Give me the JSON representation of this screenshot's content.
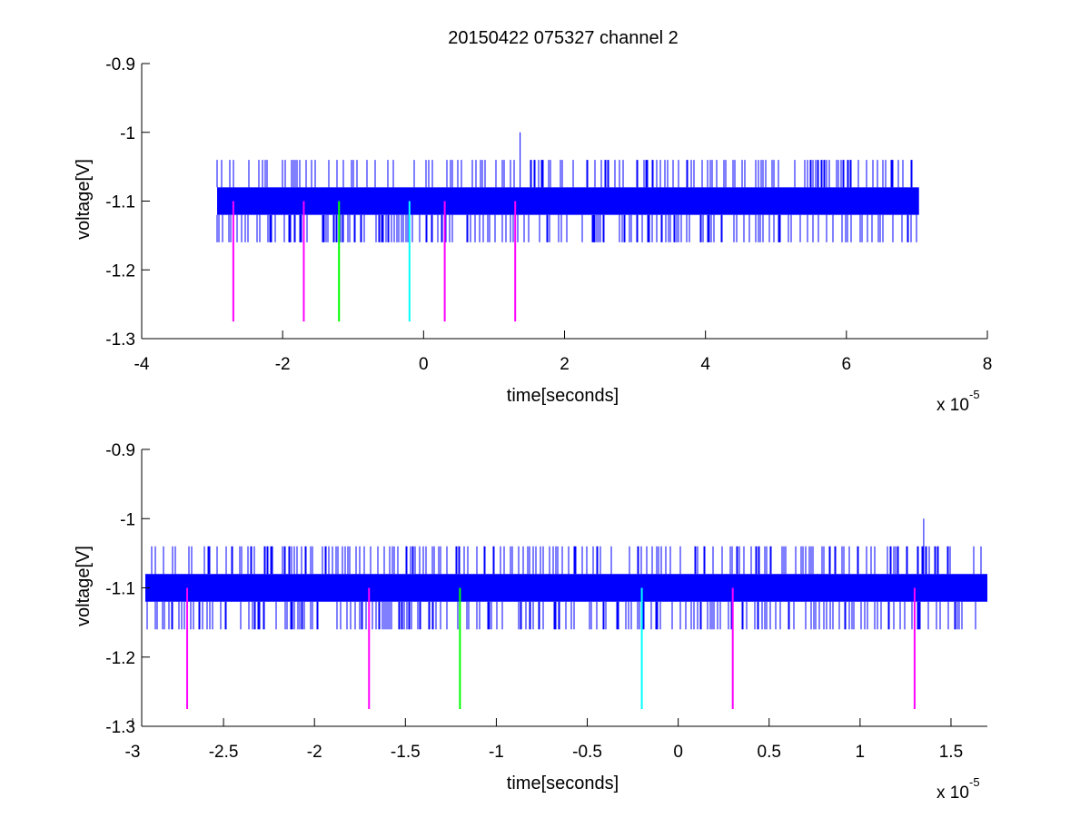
{
  "chart_data": {
    "title": "20150422 075327 channel 2",
    "colors": {
      "signal": "#0000ff",
      "marker_magenta": "#ff00ff",
      "marker_green": "#00ff00",
      "marker_cyan": "#00ffff",
      "axes": "#000000"
    },
    "plots": [
      {
        "type": "line",
        "xlabel": "time[seconds]",
        "ylabel": "voltage[V]",
        "xlim": [
          -4e-05,
          8e-05
        ],
        "ylim": [
          -1.3,
          -0.9
        ],
        "y_reversed": true,
        "x_ticks": [
          -4,
          -2,
          0,
          2,
          4,
          6,
          8
        ],
        "x_tick_labels": [
          "-4",
          "-2",
          "0",
          "2",
          "4",
          "6",
          "8"
        ],
        "y_ticks": [
          -0.9,
          -1,
          -1.1,
          -1.2,
          -1.3
        ],
        "y_tick_labels": [
          "-0.9",
          "-1",
          "-1.1",
          "-1.2",
          "-1.3"
        ],
        "x_exponent_base": "x 10",
        "x_exponent_power": "-5",
        "grid": false,
        "signal": {
          "x_range": [
            -2.93e-05,
            7.03e-05
          ],
          "band": [
            -1.12,
            -1.08
          ],
          "levels": [
            -1.04,
            -1.16
          ],
          "spike": {
            "x": 1.37e-05,
            "y": -1.0
          }
        },
        "markers": [
          {
            "x": -2.7e-05,
            "color": "magenta",
            "y_top": -1.1,
            "y_bottom": -1.275
          },
          {
            "x": -1.7e-05,
            "color": "magenta",
            "y_top": -1.1,
            "y_bottom": -1.275
          },
          {
            "x": -1.2e-05,
            "color": "green",
            "y_top": -1.1,
            "y_bottom": -1.275
          },
          {
            "x": -2e-06,
            "color": "cyan",
            "y_top": -1.1,
            "y_bottom": -1.275
          },
          {
            "x": 3e-06,
            "color": "magenta",
            "y_top": -1.1,
            "y_bottom": -1.275
          },
          {
            "x": 1.3e-05,
            "color": "magenta",
            "y_top": -1.1,
            "y_bottom": -1.275
          }
        ]
      },
      {
        "type": "line",
        "xlabel": "time[seconds]",
        "ylabel": "voltage[V]",
        "xlim": [
          -2.95e-05,
          1.7e-05
        ],
        "ylim": [
          -1.3,
          -0.9
        ],
        "y_reversed": true,
        "x_ticks": [
          -3,
          -2.5,
          -2,
          -1.5,
          -1,
          -0.5,
          0,
          0.5,
          1,
          1.5
        ],
        "x_tick_labels": [
          "-3",
          "-2.5",
          "-2",
          "-1.5",
          "-1",
          "-0.5",
          "0",
          "0.5",
          "1",
          "1.5"
        ],
        "y_ticks": [
          -0.9,
          -1,
          -1.1,
          -1.2,
          -1.3
        ],
        "y_tick_labels": [
          "-0.9",
          "-1",
          "-1.1",
          "-1.2",
          "-1.3"
        ],
        "x_exponent_base": "x 10",
        "x_exponent_power": "-5",
        "grid": false,
        "signal": {
          "x_range": [
            -2.93e-05,
            1.7e-05
          ],
          "band": [
            -1.12,
            -1.08
          ],
          "levels": [
            -1.04,
            -1.16
          ],
          "spike": {
            "x": 1.35e-05,
            "y": -1.0
          }
        },
        "markers": [
          {
            "x": -2.7e-05,
            "color": "magenta",
            "y_top": -1.1,
            "y_bottom": -1.275
          },
          {
            "x": -1.7e-05,
            "color": "magenta",
            "y_top": -1.1,
            "y_bottom": -1.275
          },
          {
            "x": -1.2e-05,
            "color": "green",
            "y_top": -1.1,
            "y_bottom": -1.275
          },
          {
            "x": -2e-06,
            "color": "cyan",
            "y_top": -1.1,
            "y_bottom": -1.275
          },
          {
            "x": 3e-06,
            "color": "magenta",
            "y_top": -1.1,
            "y_bottom": -1.275
          },
          {
            "x": 1.3e-05,
            "color": "magenta",
            "y_top": -1.1,
            "y_bottom": -1.275
          }
        ]
      }
    ]
  }
}
